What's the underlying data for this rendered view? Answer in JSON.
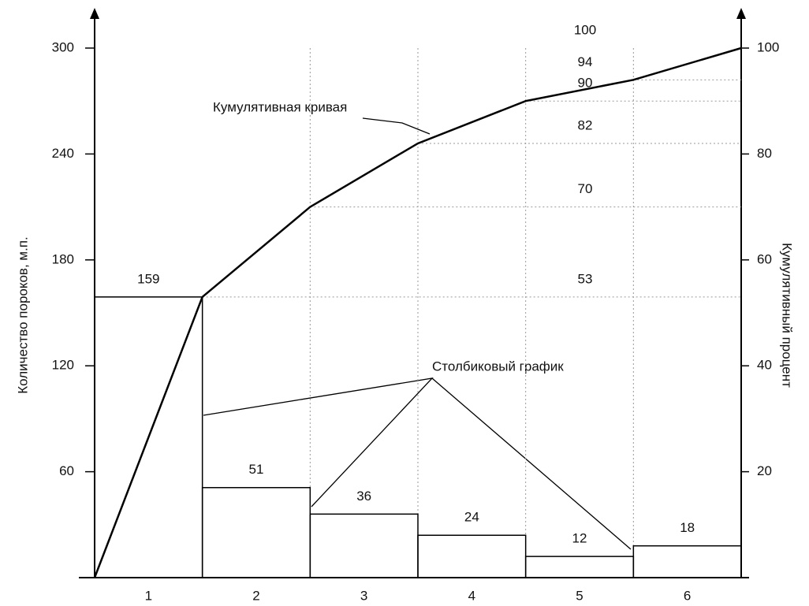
{
  "chart_data": {
    "type": "pareto",
    "annotations": [
      "Кумулятивная кривая",
      "Столбиковый график"
    ],
    "ylabel": "Количество пороков, м.п.",
    "y2label": "Кумулятивный процент",
    "categories": [
      "1",
      "2",
      "3",
      "4",
      "5",
      "6"
    ],
    "values": [
      159,
      51,
      36,
      24,
      12,
      18
    ],
    "cumulative": {
      "axis": "y2",
      "values": [
        53,
        70,
        82,
        90,
        94,
        100
      ]
    },
    "ylim": [
      0,
      300
    ],
    "yticks": [
      60,
      120,
      180,
      240,
      300
    ],
    "y2lim": [
      0,
      100
    ],
    "y2ticks": [
      20,
      40,
      60,
      80,
      100
    ]
  }
}
